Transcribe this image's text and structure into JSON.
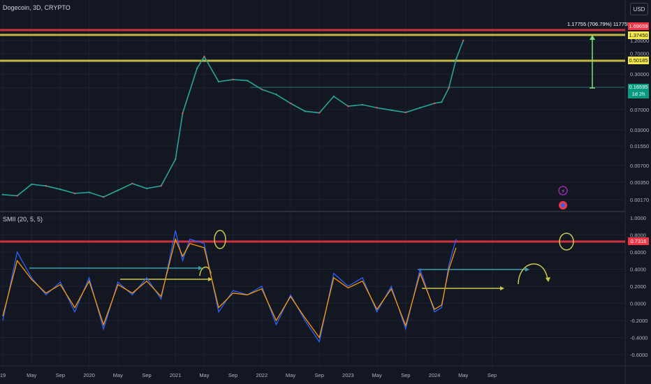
{
  "header": {
    "symbol": "Dogecoin, 3D, CRYPTO",
    "currency_button": "USD",
    "indicator_label": "SMII (20, 5, 5)"
  },
  "measure_label": "1.17755 (706.79%) 117755",
  "price_badges": {
    "red": "1.69659",
    "yellow1": "1.37450",
    "yellow2": "0.50185",
    "green_price": "0.16595",
    "green_timer": "1d 2h",
    "indicator_red": "0.7316"
  },
  "colors": {
    "background": "#131722",
    "red_line": "#f23645",
    "yellow_line": "#d4c84a",
    "green_candle": "#26a69a",
    "red_candle": "#ef5350",
    "smii_blue": "#2962ff",
    "smii_orange": "#ff9800",
    "annot_teal": "#3aa0b0",
    "annot_yellow": "#c9c94a",
    "measure_green": "#7cdf7c"
  },
  "chart_data": [
    {
      "type": "line",
      "title": "Dogecoin, 3D, CRYPTO",
      "y_scale": "log",
      "price_ticks": [
        "1.20000",
        "0.70000",
        "0.30000",
        "0.17000",
        "0.07000",
        "0.03000",
        "0.01550",
        "0.00700",
        "0.00350",
        "0.00170"
      ],
      "x_ticks": [
        "19",
        "May",
        "Sep",
        "2020",
        "May",
        "Sep",
        "2021",
        "May",
        "Sep",
        "2022",
        "May",
        "Sep",
        "2023",
        "May",
        "Sep",
        "2024",
        "May",
        "Sep"
      ],
      "horizontal_levels": [
        {
          "value": 1.69659,
          "color": "red"
        },
        {
          "value": 1.3745,
          "color": "yellow"
        },
        {
          "value": 0.50185,
          "color": "yellow"
        }
      ],
      "series": [
        {
          "x": [
            "2019-01",
            "2019-03",
            "2019-05",
            "2019-07",
            "2019-09",
            "2019-11",
            "2020-01",
            "2020-03",
            "2020-05",
            "2020-07",
            "2020-09",
            "2020-11",
            "2021-01",
            "2021-02",
            "2021-04",
            "2021-05",
            "2021-07",
            "2021-09",
            "2021-11",
            "2022-01",
            "2022-03",
            "2022-05",
            "2022-07",
            "2022-09",
            "2022-11",
            "2023-01",
            "2023-03",
            "2023-05",
            "2023-07",
            "2023-09",
            "2023-11",
            "2024-01",
            "2024-02",
            "2024-03",
            "2024-04",
            "2024-05"
          ],
          "values": [
            0.0021,
            0.002,
            0.0032,
            0.003,
            0.0026,
            0.0022,
            0.0023,
            0.0019,
            0.0025,
            0.0033,
            0.0027,
            0.003,
            0.009,
            0.06,
            0.38,
            0.62,
            0.22,
            0.24,
            0.23,
            0.16,
            0.13,
            0.09,
            0.065,
            0.061,
            0.12,
            0.08,
            0.085,
            0.075,
            0.068,
            0.062,
            0.075,
            0.09,
            0.095,
            0.17,
            0.55,
            1.2
          ]
        }
      ]
    },
    {
      "type": "line",
      "title": "SMII (20, 5, 5)",
      "y_ticks": [
        "1.0000",
        "0.8000",
        "0.6000",
        "0.4000",
        "0.2000",
        "0.0000",
        "-0.2000",
        "-0.4000",
        "-0.6000"
      ],
      "ylim": [
        -0.6,
        1.0
      ],
      "horizontal_levels": [
        {
          "value": 0.7316,
          "color": "red"
        }
      ],
      "series": [
        {
          "color": "blue",
          "x": [
            "2019-01",
            "2019-03",
            "2019-05",
            "2019-07",
            "2019-09",
            "2019-11",
            "2020-01",
            "2020-03",
            "2020-05",
            "2020-07",
            "2020-09",
            "2020-11",
            "2021-01",
            "2021-02",
            "2021-03",
            "2021-05",
            "2021-07",
            "2021-09",
            "2021-11",
            "2022-01",
            "2022-03",
            "2022-05",
            "2022-07",
            "2022-09",
            "2022-11",
            "2023-01",
            "2023-03",
            "2023-05",
            "2023-07",
            "2023-09",
            "2023-11",
            "2024-01",
            "2024-02",
            "2024-03",
            "2024-04"
          ],
          "values": [
            -0.2,
            0.6,
            0.3,
            0.1,
            0.25,
            -0.1,
            0.3,
            -0.3,
            0.25,
            0.1,
            0.3,
            0.05,
            0.85,
            0.5,
            0.75,
            0.7,
            -0.1,
            0.15,
            0.1,
            0.2,
            -0.25,
            0.1,
            -0.2,
            -0.45,
            0.35,
            0.2,
            0.3,
            -0.1,
            0.2,
            -0.3,
            0.4,
            -0.1,
            -0.05,
            0.45,
            0.75
          ]
        },
        {
          "color": "orange",
          "x": [
            "2019-01",
            "2019-03",
            "2019-05",
            "2019-07",
            "2019-09",
            "2019-11",
            "2020-01",
            "2020-03",
            "2020-05",
            "2020-07",
            "2020-09",
            "2020-11",
            "2021-01",
            "2021-02",
            "2021-03",
            "2021-05",
            "2021-07",
            "2021-09",
            "2021-11",
            "2022-01",
            "2022-03",
            "2022-05",
            "2022-07",
            "2022-09",
            "2022-11",
            "2023-01",
            "2023-03",
            "2023-05",
            "2023-07",
            "2023-09",
            "2023-11",
            "2024-01",
            "2024-02",
            "2024-03",
            "2024-04"
          ],
          "values": [
            -0.15,
            0.5,
            0.28,
            0.12,
            0.22,
            -0.05,
            0.26,
            -0.25,
            0.22,
            0.12,
            0.26,
            0.08,
            0.75,
            0.55,
            0.7,
            0.65,
            -0.05,
            0.12,
            0.1,
            0.17,
            -0.2,
            0.08,
            -0.17,
            -0.4,
            0.3,
            0.18,
            0.26,
            -0.07,
            0.17,
            -0.26,
            0.35,
            -0.07,
            -0.02,
            0.4,
            0.65
          ]
        }
      ]
    }
  ]
}
